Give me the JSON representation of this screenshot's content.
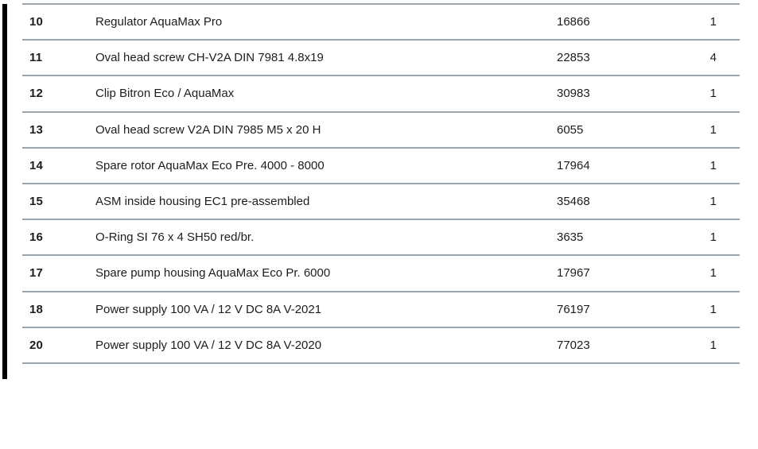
{
  "colors": {
    "row_divider": "#9aa4ac",
    "text": "#1d1d1b",
    "accent_bar": "#000000",
    "background": "#ffffff"
  },
  "table": {
    "rows": [
      {
        "position": "10",
        "description": "Regulator AquaMax Pro",
        "part_number": "16866",
        "quantity": "1"
      },
      {
        "position": "11",
        "description": "Oval head screw CH-V2A DIN 7981 4.8x19",
        "part_number": "22853",
        "quantity": "4"
      },
      {
        "position": "12",
        "description": "Clip Bitron Eco / AquaMax",
        "part_number": "30983",
        "quantity": "1"
      },
      {
        "position": "13",
        "description": "Oval head screw V2A DIN 7985 M5 x 20 H",
        "part_number": "6055",
        "quantity": "1"
      },
      {
        "position": "14",
        "description": "Spare rotor AquaMax Eco Pre. 4000 - 8000",
        "part_number": "17964",
        "quantity": "1"
      },
      {
        "position": "15",
        "description": "ASM inside housing EC1 pre-assembled",
        "part_number": "35468",
        "quantity": "1"
      },
      {
        "position": "16",
        "description": "O-Ring SI 76 x 4 SH50 red/br.",
        "part_number": "3635",
        "quantity": "1"
      },
      {
        "position": "17",
        "description": "Spare pump housing AquaMax Eco Pr. 6000",
        "part_number": "17967",
        "quantity": "1"
      },
      {
        "position": "18",
        "description": "Power supply 100 VA / 12 V DC 8A V-2021",
        "part_number": "76197",
        "quantity": "1"
      },
      {
        "position": "20",
        "description": "Power supply 100 VA / 12 V DC 8A V-2020",
        "part_number": "77023",
        "quantity": "1"
      }
    ]
  }
}
